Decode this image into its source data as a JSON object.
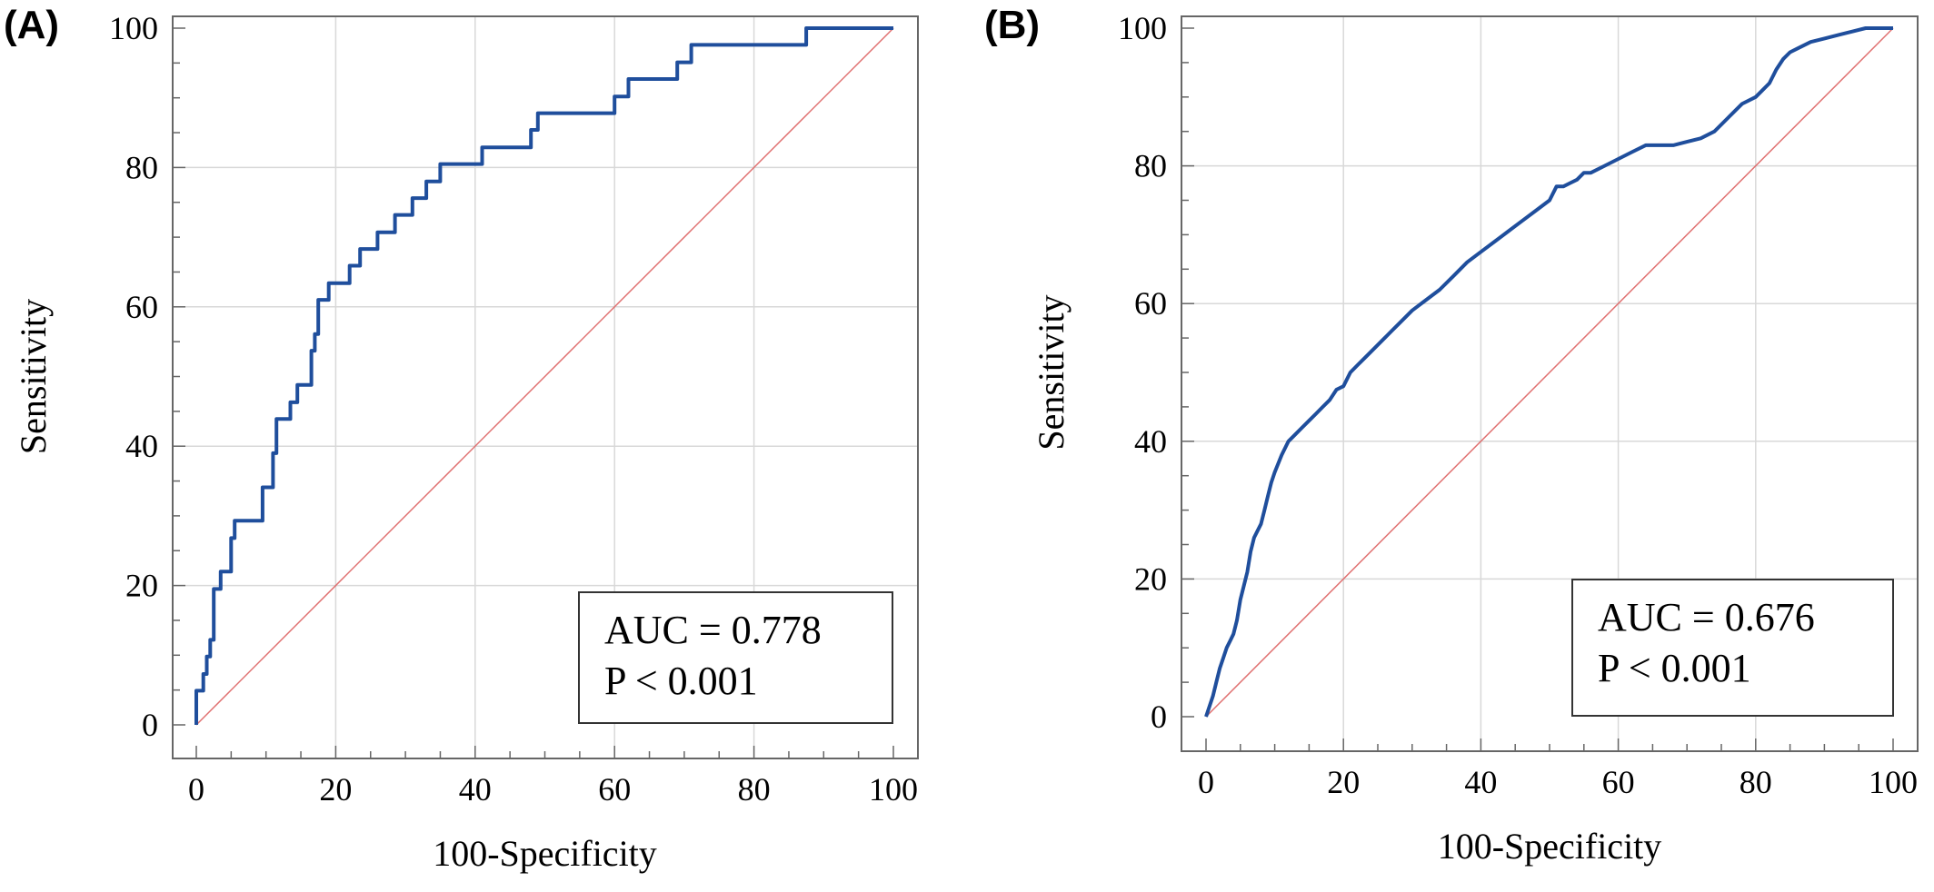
{
  "colors": {
    "roc": "#1f4e9c",
    "reference": "#e07070",
    "grid": "#d8d8d8",
    "axis": "#666666"
  },
  "chart_data": [
    {
      "type": "line",
      "panel_label": "(A)",
      "xlabel": "100-Specificity",
      "ylabel": "Sensitivity",
      "xlim": [
        0,
        100
      ],
      "ylim": [
        0,
        100
      ],
      "x_ticks": [
        "0",
        "20",
        "40",
        "60",
        "80",
        "100"
      ],
      "y_ticks": [
        "0",
        "20",
        "40",
        "60",
        "80",
        "100"
      ],
      "grid": true,
      "annotation": {
        "auc": "AUC = 0.778",
        "p": "P < 0.001",
        "placement": "bottom-right"
      },
      "series": [
        {
          "role": "roc",
          "x": [
            0,
            0,
            1,
            1,
            1.5,
            1.5,
            2,
            2,
            2.5,
            2.5,
            3.5,
            3.5,
            5,
            5,
            5.5,
            5.5,
            9.5,
            9.5,
            11,
            11,
            11.5,
            11.5,
            13.5,
            13.5,
            14.5,
            14.5,
            16.5,
            16.5,
            17,
            17,
            17.5,
            17.5,
            19,
            19,
            22,
            22,
            23.5,
            23.5,
            26,
            26,
            28.5,
            28.5,
            31,
            31,
            33,
            33,
            35,
            35,
            36,
            36,
            41,
            41,
            48,
            48,
            49,
            49,
            60,
            60,
            62,
            62,
            69,
            69,
            71,
            71,
            87.5,
            87.5,
            100
          ],
          "y": [
            0,
            4.9,
            4.9,
            7.3,
            7.3,
            9.8,
            9.8,
            12.2,
            12.2,
            19.5,
            19.5,
            22.0,
            22.0,
            26.8,
            26.8,
            29.3,
            29.3,
            34.1,
            34.1,
            39.0,
            39.0,
            43.9,
            43.9,
            46.3,
            46.3,
            48.8,
            48.8,
            53.7,
            53.7,
            56.1,
            56.1,
            61.0,
            61.0,
            63.4,
            63.4,
            65.9,
            65.9,
            68.3,
            68.3,
            70.7,
            70.7,
            73.2,
            73.2,
            75.6,
            75.6,
            78.0,
            78.0,
            80.5,
            80.5,
            80.5,
            80.5,
            82.9,
            82.9,
            85.4,
            85.4,
            87.8,
            87.8,
            90.2,
            90.2,
            92.7,
            92.7,
            95.1,
            95.1,
            97.6,
            97.6,
            100,
            100
          ]
        },
        {
          "role": "reference",
          "x": [
            0,
            100
          ],
          "y": [
            0,
            100
          ]
        }
      ]
    },
    {
      "type": "line",
      "panel_label": "(B)",
      "xlabel": "100-Specificity",
      "ylabel": "Sensitivity",
      "xlim": [
        0,
        100
      ],
      "ylim": [
        0,
        100
      ],
      "x_ticks": [
        "0",
        "20",
        "40",
        "60",
        "80",
        "100"
      ],
      "y_ticks": [
        "0",
        "20",
        "40",
        "60",
        "80",
        "100"
      ],
      "grid": true,
      "annotation": {
        "auc": "AUC = 0.676",
        "p": "P < 0.001",
        "placement": "bottom-right"
      },
      "series": [
        {
          "role": "roc",
          "x": [
            0,
            0.5,
            1,
            1.5,
            2,
            2.5,
            3,
            3.5,
            4,
            4.5,
            5,
            5.5,
            6,
            6.5,
            7,
            7.5,
            8,
            8.5,
            9,
            9.5,
            10,
            11,
            12,
            13,
            14,
            15,
            16,
            17,
            18,
            19,
            20,
            21,
            22,
            23,
            24,
            25,
            26,
            27,
            28,
            29,
            30,
            32,
            34,
            36,
            38,
            40,
            42,
            44,
            46,
            48,
            50,
            51,
            52,
            53,
            54,
            55,
            56,
            58,
            60,
            62,
            64,
            66,
            68,
            70,
            72,
            74,
            76,
            78,
            80,
            81,
            82,
            83,
            84,
            85,
            86,
            88,
            90,
            92,
            94,
            96,
            98,
            100
          ],
          "y": [
            0,
            1.5,
            3,
            5,
            7,
            8.5,
            10,
            11,
            12,
            14,
            17,
            19,
            21,
            24,
            26,
            27,
            28,
            30,
            32,
            34,
            35.5,
            38,
            40,
            41,
            42,
            43,
            44,
            45,
            46,
            47.5,
            48,
            50,
            51,
            52,
            53,
            54,
            55,
            56,
            57,
            58,
            59,
            60.5,
            62,
            64,
            66,
            67.5,
            69,
            70.5,
            72,
            73.5,
            75,
            77,
            77,
            77.5,
            78,
            79,
            79,
            80,
            81,
            82,
            83,
            83,
            83,
            83.5,
            84,
            85,
            87,
            89,
            90,
            91,
            92,
            94,
            95.5,
            96.5,
            97,
            98,
            98.5,
            99,
            99.5,
            100,
            100,
            100
          ]
        },
        {
          "role": "reference",
          "x": [
            0,
            100
          ],
          "y": [
            0,
            100
          ]
        }
      ]
    }
  ]
}
